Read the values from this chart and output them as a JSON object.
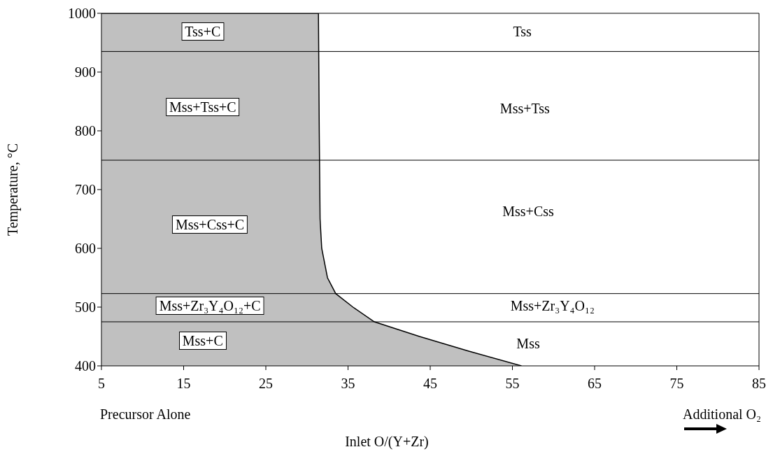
{
  "chart_data": {
    "type": "area",
    "ylabel": "Temperature, °C",
    "xlabel": "Inlet O/(Y+Zr)",
    "series": [
      {
        "color": "#c0c0c0",
        "x": [
          5,
          31.4,
          31.5,
          31.6,
          31.8,
          32.5,
          33.5,
          35.6,
          38.2,
          43.7,
          49.7,
          56.1
        ],
        "values": [
          1000,
          1000,
          800,
          650,
          600,
          550,
          523,
          500,
          475,
          450,
          425,
          400
        ]
      }
    ],
    "xlim": [
      5,
      85
    ],
    "xticks": [
      5,
      15,
      25,
      35,
      45,
      55,
      65,
      75,
      85
    ],
    "ylim": [
      400,
      1000
    ],
    "yticks": [
      400,
      500,
      600,
      700,
      800,
      900,
      1000
    ],
    "grid": false,
    "ref_lines": [
      {
        "axis": "y",
        "value": 935,
        "color": "#000000"
      },
      {
        "axis": "y",
        "value": 750,
        "color": "#000000"
      },
      {
        "axis": "y",
        "value": 523,
        "color": "#000000"
      },
      {
        "axis": "y",
        "value": 475,
        "color": "#000000"
      }
    ],
    "annotations": [
      "Tss+C",
      "Tss",
      "Mss+Tss+C",
      "Mss+Tss",
      "Mss+Css+C",
      "Mss+Css",
      "Mss+Zr₃Y₄O₁₂+C",
      "Mss+Zr₃Y₄O₁₂",
      "Mss+C",
      "Mss",
      "Precursor Alone",
      "Additional O₂"
    ]
  }
}
